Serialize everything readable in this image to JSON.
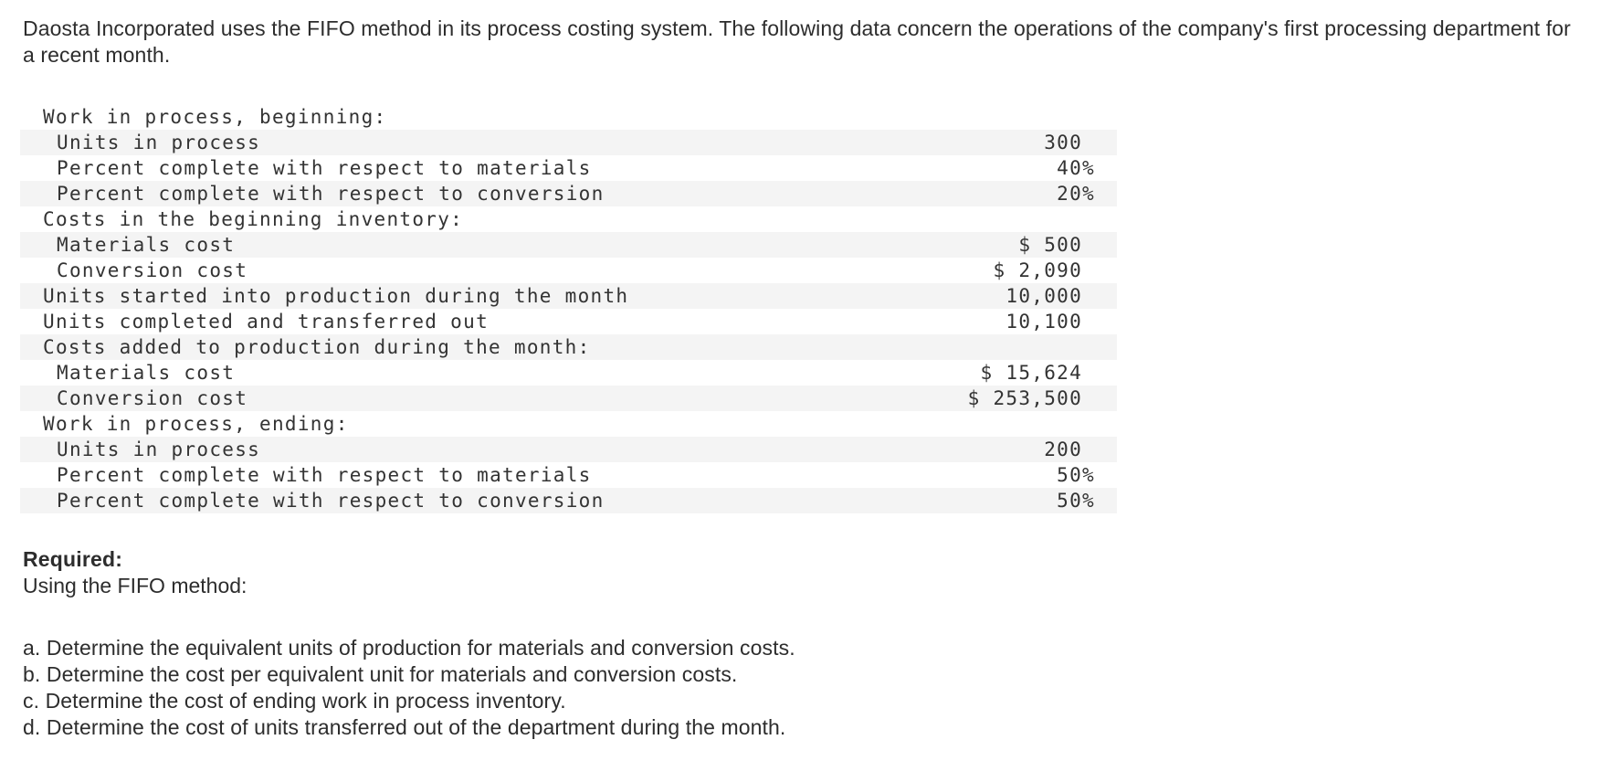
{
  "intro_text": "Daosta Incorporated uses the FIFO method in its process costing system. The following data concern the operations of the company's first processing department for a recent month.",
  "cost_table": {
    "rows": [
      {
        "label": "Work in process, beginning:",
        "indent": 0,
        "value": ""
      },
      {
        "label": "Units in process",
        "indent": 1,
        "value": "300 "
      },
      {
        "label": "Percent complete with respect to materials",
        "indent": 1,
        "value": "40%"
      },
      {
        "label": "Percent complete with respect to conversion",
        "indent": 1,
        "value": "20%"
      },
      {
        "label": "Costs in the beginning inventory:",
        "indent": 0,
        "value": ""
      },
      {
        "label": "Materials cost",
        "indent": 1,
        "value": "$ 500 "
      },
      {
        "label": "Conversion cost",
        "indent": 1,
        "value": "$ 2,090 "
      },
      {
        "label": "Units started into production during the month",
        "indent": 0,
        "value": "10,000 "
      },
      {
        "label": "Units completed and transferred out",
        "indent": 0,
        "value": "10,100 "
      },
      {
        "label": "Costs added to production during the month:",
        "indent": 0,
        "value": ""
      },
      {
        "label": "Materials cost",
        "indent": 1,
        "value": "$ 15,624 "
      },
      {
        "label": "Conversion cost",
        "indent": 1,
        "value": "$ 253,500 "
      },
      {
        "label": "Work in process, ending:",
        "indent": 0,
        "value": ""
      },
      {
        "label": "Units in process",
        "indent": 1,
        "value": "200 "
      },
      {
        "label": "Percent complete with respect to materials",
        "indent": 1,
        "value": "50%"
      },
      {
        "label": "Percent complete with respect to conversion",
        "indent": 1,
        "value": "50%"
      }
    ]
  },
  "required": {
    "heading": "Required:",
    "subheading": "Using the FIFO method:",
    "items": [
      "a. Determine the equivalent units of production for materials and conversion costs.",
      "b. Determine the cost per equivalent unit for materials and conversion costs.",
      "c. Determine the cost of ending work in process inventory.",
      "d. Determine the cost of units transferred out of the department during the month."
    ]
  },
  "colors": {
    "row_shade": "#f4f4f4",
    "body_text": "#2d2d2d",
    "table_text": "#333333",
    "background": "#ffffff"
  }
}
